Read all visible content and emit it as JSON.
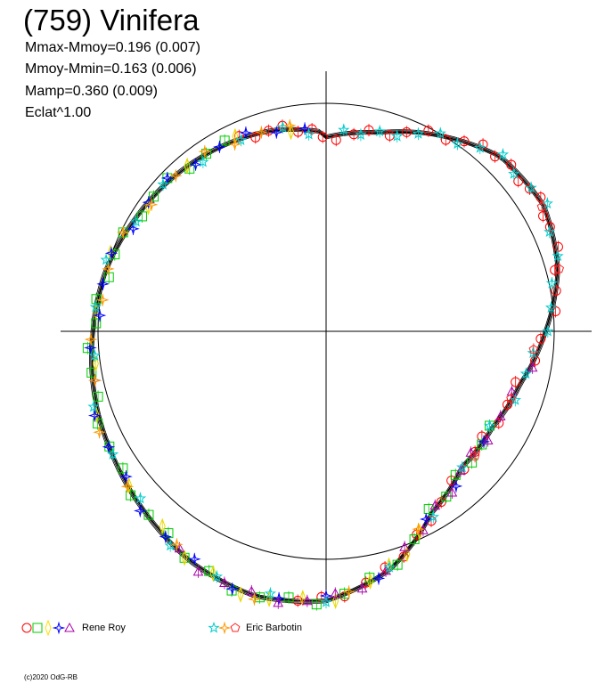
{
  "chart_data": {
    "type": "scatter",
    "title": "(759) Vinifera",
    "stats": [
      "Mmax-Mmoy=0.196 (0.007)",
      "Mmoy-Mmin=0.163 (0.006)",
      "Mamp=0.360 (0.009)",
      "Eclat^1.00"
    ],
    "reference_circle_radius": 1.0,
    "curve_radii": [
      0.85,
      0.9,
      0.99,
      1.08,
      1.1,
      1.05,
      0.96,
      0.88,
      0.84,
      0.84,
      0.92,
      1.08,
      1.18,
      1.2,
      1.17,
      1.12,
      1.08,
      1.05,
      1.02,
      1.0,
      0.97,
      0.95,
      0.93,
      0.91,
      0.87
    ],
    "legend": [
      {
        "label": "Rene Roy",
        "colors": [
          "#ff0000",
          "#00cc00",
          "#ffdd00",
          "#0000ff",
          "#aa00aa"
        ],
        "markers": [
          "circle",
          "square",
          "diamond",
          "star4",
          "triangle"
        ]
      },
      {
        "label": "Eric Barbotin",
        "colors": [
          "#00cccc",
          "#ff9900",
          "#ff2222"
        ],
        "markers": [
          "star",
          "star4",
          "pentagon"
        ]
      }
    ],
    "series": [
      {
        "color": "#ff0000",
        "marker": "circle",
        "angles_deg": [
          3,
          8,
          12,
          18,
          22,
          27,
          32,
          36,
          40,
          44,
          48,
          52,
          55,
          58,
          62,
          65,
          70,
          75,
          80,
          85,
          92,
          98,
          105,
          112,
          118,
          124,
          129,
          135,
          140,
          146,
          151,
          156,
          161,
          166,
          171,
          176,
          181,
          186,
          336,
          340,
          344,
          348,
          352,
          356,
          359
        ]
      },
      {
        "color": "#00cc00",
        "marker": "square",
        "angles_deg": [
          120,
          126,
          132,
          138,
          144,
          150,
          157,
          163,
          170,
          176,
          182,
          188,
          194,
          200,
          206,
          212,
          218,
          224,
          230,
          236,
          242,
          248,
          254,
          260,
          266,
          272,
          278,
          284,
          290,
          296,
          302,
          308,
          314,
          320,
          326,
          332
        ]
      },
      {
        "color": "#e8d800",
        "marker": "diamond",
        "angles_deg": [
          155,
          160,
          165,
          170,
          178,
          185,
          192,
          198,
          205,
          212,
          220,
          232,
          250,
          262,
          275,
          290,
          305,
          320,
          335,
          350
        ]
      },
      {
        "color": "#0000ff",
        "marker": "star4",
        "angles_deg": [
          125,
          140,
          152,
          168,
          180,
          190,
          200,
          210,
          218,
          226,
          234,
          242,
          250,
          258,
          266,
          274,
          282,
          290,
          298,
          306,
          314,
          322,
          330,
          338,
          346,
          354
        ]
      },
      {
        "color": "#aa00aa",
        "marker": "triangle",
        "angles_deg": [
          100,
          108,
          116,
          124,
          130,
          136,
          142,
          148,
          154,
          160,
          166,
          172,
          178,
          184,
          190,
          196,
          202,
          208,
          214
        ]
      },
      {
        "color": "#00cccc",
        "marker": "star",
        "angles_deg": [
          5,
          10,
          15,
          20,
          25,
          30,
          35,
          40,
          45,
          50,
          55,
          60,
          66,
          72,
          78,
          84,
          90,
          96,
          102,
          110,
          120,
          135,
          150,
          165,
          180,
          192,
          204,
          216,
          228,
          240,
          252,
          264,
          276,
          288,
          300,
          312,
          324,
          336,
          348,
          355
        ]
      },
      {
        "color": "#ff9900",
        "marker": "star4",
        "angles_deg": [
          155,
          175,
          195,
          215,
          232,
          246,
          258,
          268,
          278,
          286,
          296,
          306,
          316,
          326,
          334,
          342,
          350
        ]
      },
      {
        "color": "#ff2222",
        "marker": "pentagon",
        "angles_deg": [
          60,
          75,
          95,
          110,
          130
        ]
      }
    ]
  },
  "footer": {
    "copyright": "(c)2020 OdG-RB"
  }
}
